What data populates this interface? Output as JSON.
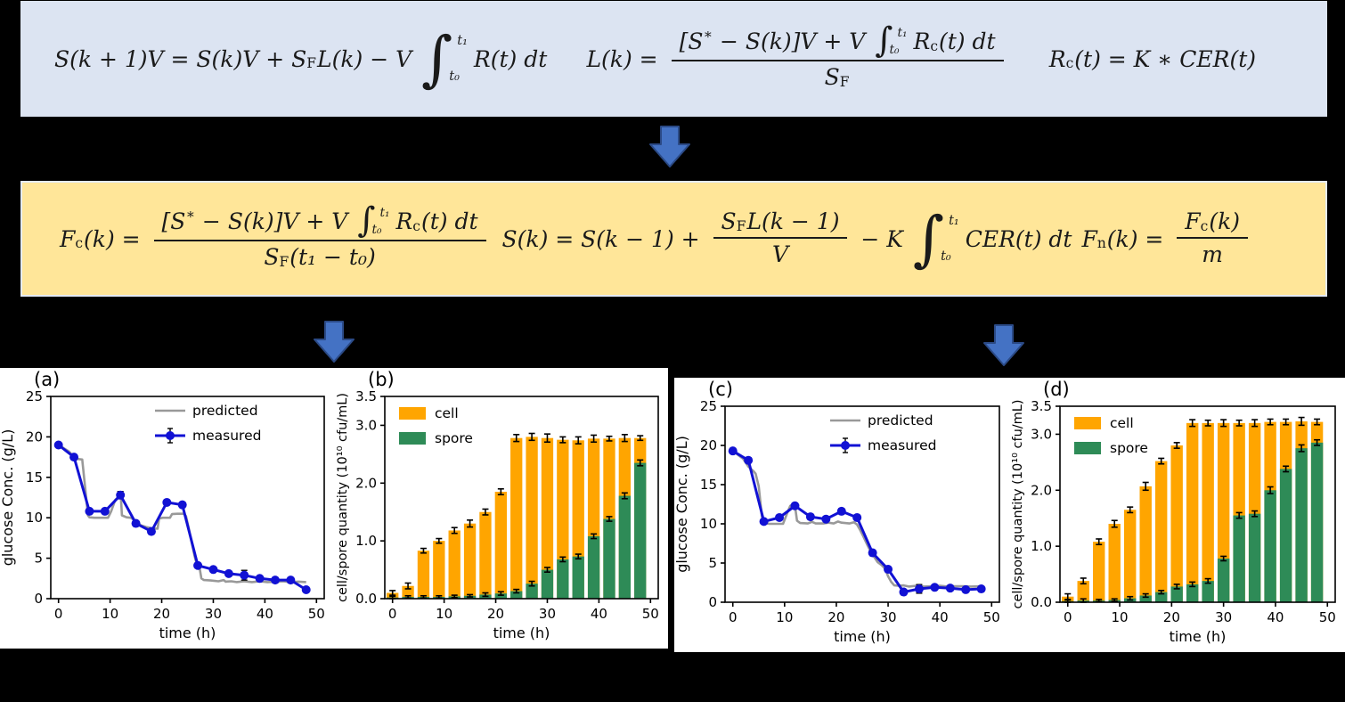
{
  "colors": {
    "background": "#000000",
    "model_box_bg": "#dce4f2",
    "control_box_bg": "#ffe699",
    "control_box_border": "#e4ebf5",
    "arrow_fill": "#4472c4",
    "arrow_stroke": "#2b4a86",
    "panel_bg": "#ffffff",
    "equation_text": "#1a1a1a",
    "predicted_line": "#999999",
    "measured_line": "#1111d4",
    "cell_bar": "#ffa500",
    "spore_bar": "#2e8b57",
    "axis": "#000000"
  },
  "formula_boxes": [
    {
      "name": "substrate-mass-balance-model",
      "equations": [
        {
          "segs": [
            {
              "t": "v",
              "s": "S(k + 1)V = S(k)V + S"
            },
            {
              "t": "sub",
              "s": "F"
            },
            {
              "t": "v",
              "s": "L(k) − V "
            },
            {
              "t": "int",
              "big": true,
              "hi": "t₁",
              "lo": "t₀"
            },
            {
              "t": "v",
              "s": " R(t) dt"
            }
          ]
        },
        {
          "segs": [
            {
              "t": "v",
              "s": "L(k) = "
            },
            {
              "t": "frac",
              "num": [
                {
                  "t": "v",
                  "s": "[S"
                },
                {
                  "t": "sup",
                  "s": "∗"
                },
                {
                  "t": "v",
                  "s": " − S(k)]V + V "
                },
                {
                  "t": "int",
                  "hi": "t₁",
                  "lo": "t₀"
                },
                {
                  "t": "v",
                  "s": " R"
                },
                {
                  "t": "sub",
                  "s": "c"
                },
                {
                  "t": "v",
                  "s": "(t) dt"
                }
              ],
              "den": [
                {
                  "t": "v",
                  "s": "S"
                },
                {
                  "t": "sub",
                  "s": "F"
                }
              ]
            }
          ]
        },
        {
          "segs": [
            {
              "t": "v",
              "s": "R"
            },
            {
              "t": "sub",
              "s": "c"
            },
            {
              "t": "v",
              "s": "(t) = K ∗ CER(t)"
            }
          ]
        }
      ]
    },
    {
      "name": "feed-rate-control-law",
      "equations": [
        {
          "segs": [
            {
              "t": "v",
              "s": "F"
            },
            {
              "t": "sub",
              "s": "c"
            },
            {
              "t": "v",
              "s": "(k) = "
            },
            {
              "t": "frac",
              "num": [
                {
                  "t": "v",
                  "s": "[S"
                },
                {
                  "t": "sup",
                  "s": "∗"
                },
                {
                  "t": "v",
                  "s": " − S(k)]V + V "
                },
                {
                  "t": "int",
                  "hi": "t₁",
                  "lo": "t₀"
                },
                {
                  "t": "v",
                  "s": " R"
                },
                {
                  "t": "sub",
                  "s": "c"
                },
                {
                  "t": "v",
                  "s": "(t) dt"
                }
              ],
              "den": [
                {
                  "t": "v",
                  "s": "S"
                },
                {
                  "t": "sub",
                  "s": "F"
                },
                {
                  "t": "v",
                  "s": "(t₁ − t₀)"
                }
              ]
            }
          ]
        },
        {
          "segs": [
            {
              "t": "v",
              "s": "S(k) = S(k − 1) + "
            },
            {
              "t": "frac",
              "num": [
                {
                  "t": "v",
                  "s": "S"
                },
                {
                  "t": "sub",
                  "s": "F"
                },
                {
                  "t": "v",
                  "s": "L(k − 1)"
                }
              ],
              "den": [
                {
                  "t": "v",
                  "s": "V"
                }
              ]
            },
            {
              "t": "v",
              "s": " − K "
            },
            {
              "t": "int",
              "big": true,
              "hi": "t₁",
              "lo": "t₀"
            },
            {
              "t": "v",
              "s": " CER(t) dt"
            }
          ]
        },
        {
          "segs": [
            {
              "t": "v",
              "s": "F"
            },
            {
              "t": "sub",
              "s": "n"
            },
            {
              "t": "v",
              "s": "(k) = "
            },
            {
              "t": "frac",
              "num": [
                {
                  "t": "v",
                  "s": "F"
                },
                {
                  "t": "sub",
                  "s": "c"
                },
                {
                  "t": "v",
                  "s": "(k)"
                }
              ],
              "den": [
                {
                  "t": "v",
                  "s": "m"
                }
              ]
            }
          ]
        }
      ]
    }
  ],
  "chart_data": [
    {
      "id": "a",
      "type": "line",
      "panel_label": "(a)",
      "xlabel": "time (h)",
      "ylabel": "glucose Conc.  (g/L)",
      "xlim": [
        -1.5,
        51.5
      ],
      "ylim": [
        0,
        25
      ],
      "xticks": [
        0,
        10,
        20,
        30,
        40,
        50
      ],
      "yticks": [
        0,
        5,
        10,
        15,
        20,
        25
      ],
      "legend": [
        {
          "label": "predicted",
          "kind": "line"
        },
        {
          "label": "measured",
          "kind": "errline"
        }
      ],
      "legend_pos": "top-right",
      "x": [
        0,
        3,
        6,
        9,
        12,
        15,
        18,
        21,
        24,
        27,
        30,
        33,
        36,
        39,
        42,
        45,
        48
      ],
      "measured": [
        19.0,
        17.5,
        10.8,
        10.8,
        12.8,
        9.3,
        8.3,
        11.9,
        11.6,
        4.1,
        3.6,
        3.1,
        2.9,
        2.5,
        2.3,
        2.3,
        1.1
      ],
      "measured_err": [
        0.15,
        0.2,
        0.2,
        0.15,
        0.45,
        0.25,
        0.2,
        0.3,
        0.25,
        0.3,
        0.15,
        0.2,
        0.6,
        0.15,
        0.15,
        0.2,
        0.15
      ],
      "predicted": [
        [
          0,
          19
        ],
        [
          2,
          18.2
        ],
        [
          3,
          17.5
        ],
        [
          3.3,
          17.3
        ],
        [
          4.6,
          17.2
        ],
        [
          5.2,
          13.5
        ],
        [
          5.7,
          10.3
        ],
        [
          6,
          10.05
        ],
        [
          7,
          10
        ],
        [
          9.6,
          10
        ],
        [
          10.2,
          10.8
        ],
        [
          11,
          12.2
        ],
        [
          11.6,
          12.55
        ],
        [
          12.1,
          12.4
        ],
        [
          12.3,
          10.3
        ],
        [
          13.2,
          10.05
        ],
        [
          14,
          10
        ],
        [
          14.6,
          9.75
        ],
        [
          15.2,
          9.4
        ],
        [
          16,
          9.05
        ],
        [
          17,
          8.85
        ],
        [
          18.2,
          8.7
        ],
        [
          19.2,
          8.65
        ],
        [
          19.5,
          9.9
        ],
        [
          20.2,
          10
        ],
        [
          21.6,
          10
        ],
        [
          22,
          10.45
        ],
        [
          23,
          10.5
        ],
        [
          24.3,
          10.5
        ],
        [
          24.7,
          10.2
        ],
        [
          25.2,
          8.8
        ],
        [
          25.8,
          7.0
        ],
        [
          26.4,
          5.2
        ],
        [
          27,
          3.75
        ],
        [
          27.4,
          3.6
        ],
        [
          27.7,
          2.5
        ],
        [
          28.2,
          2.3
        ],
        [
          29.5,
          2.25
        ],
        [
          31,
          2.15
        ],
        [
          32,
          2.3
        ],
        [
          32.4,
          2.1
        ],
        [
          33.5,
          2.15
        ],
        [
          34.5,
          2.05
        ],
        [
          36,
          2.15
        ],
        [
          37.5,
          2.05
        ],
        [
          39,
          2.15
        ],
        [
          40.5,
          2.05
        ],
        [
          42,
          2.1
        ],
        [
          43.5,
          2.15
        ],
        [
          45,
          2.05
        ],
        [
          46.5,
          2.1
        ],
        [
          48,
          2.05
        ]
      ]
    },
    {
      "id": "b",
      "type": "bar",
      "panel_label": "(b)",
      "xlabel": "time (h)",
      "ylabel": "cell/spore quantity (10¹⁰ cfu/mL)",
      "xlim": [
        -1.5,
        51.5
      ],
      "ylim": [
        0,
        3.5
      ],
      "xticks": [
        0,
        10,
        20,
        30,
        40,
        50
      ],
      "yticks": [
        0,
        1,
        2,
        3,
        3.5
      ],
      "legend": [
        {
          "label": "cell",
          "kind": "patch-cell"
        },
        {
          "label": "spore",
          "kind": "patch-spore"
        }
      ],
      "legend_pos": "top-left",
      "bar_width": 2.3,
      "x": [
        0,
        3,
        6,
        9,
        12,
        15,
        18,
        21,
        24,
        27,
        30,
        33,
        36,
        39,
        42,
        45,
        48
      ],
      "cell": [
        0.1,
        0.22,
        0.83,
        1.0,
        1.18,
        1.3,
        1.5,
        1.85,
        2.78,
        2.8,
        2.78,
        2.75,
        2.74,
        2.77,
        2.77,
        2.78,
        2.78
      ],
      "cell_err": [
        0.04,
        0.05,
        0.04,
        0.04,
        0.05,
        0.06,
        0.05,
        0.05,
        0.06,
        0.06,
        0.07,
        0.05,
        0.06,
        0.06,
        0.04,
        0.06,
        0.04
      ],
      "spore": [
        0.02,
        0.03,
        0.03,
        0.03,
        0.04,
        0.05,
        0.07,
        0.09,
        0.13,
        0.26,
        0.5,
        0.68,
        0.73,
        1.08,
        1.38,
        1.78,
        2.35
      ],
      "spore_err": [
        0.02,
        0.02,
        0.02,
        0.02,
        0.02,
        0.02,
        0.03,
        0.03,
        0.03,
        0.04,
        0.04,
        0.04,
        0.04,
        0.04,
        0.04,
        0.05,
        0.05
      ]
    },
    {
      "id": "c",
      "type": "line",
      "panel_label": "(c)",
      "xlabel": "time (h)",
      "ylabel": "glucose Conc.  (g/L)",
      "xlim": [
        -1.5,
        51.5
      ],
      "ylim": [
        0,
        25
      ],
      "xticks": [
        0,
        10,
        20,
        30,
        40,
        50
      ],
      "yticks": [
        0,
        5,
        10,
        15,
        20,
        25
      ],
      "legend": [
        {
          "label": "predicted",
          "kind": "line"
        },
        {
          "label": "measured",
          "kind": "errline"
        }
      ],
      "legend_pos": "top-right",
      "x": [
        0,
        3,
        6,
        9,
        12,
        15,
        18,
        21,
        24,
        27,
        30,
        33,
        36,
        39,
        42,
        45,
        48
      ],
      "measured": [
        19.3,
        18.1,
        10.3,
        10.8,
        12.3,
        10.9,
        10.6,
        11.6,
        10.8,
        6.3,
        4.2,
        1.3,
        1.7,
        1.9,
        1.8,
        1.6,
        1.7
      ],
      "measured_err": [
        0.2,
        0.15,
        0.2,
        0.25,
        0.35,
        0.3,
        0.2,
        0.35,
        0.25,
        0.35,
        0.2,
        0.25,
        0.55,
        0.15,
        0.2,
        0.15,
        0.15
      ],
      "predicted": [
        [
          0,
          19.3
        ],
        [
          2,
          18.3
        ],
        [
          3,
          17.3
        ],
        [
          4,
          16.7
        ],
        [
          4.4,
          16.4
        ],
        [
          5,
          14.8
        ],
        [
          5.6,
          11
        ],
        [
          6,
          10.15
        ],
        [
          7,
          10
        ],
        [
          9.7,
          10
        ],
        [
          10.4,
          11.2
        ],
        [
          11.1,
          12.3
        ],
        [
          11.6,
          12.45
        ],
        [
          12,
          12.3
        ],
        [
          12.4,
          10.4
        ],
        [
          13,
          10.1
        ],
        [
          14.5,
          10.05
        ],
        [
          15.3,
          10.25
        ],
        [
          16,
          10.05
        ],
        [
          17.5,
          10.05
        ],
        [
          18.5,
          10.15
        ],
        [
          19.5,
          10.05
        ],
        [
          20.3,
          10.3
        ],
        [
          21,
          10.15
        ],
        [
          22.5,
          10.05
        ],
        [
          23.4,
          10.2
        ],
        [
          24,
          9.9
        ],
        [
          24.6,
          9.2
        ],
        [
          25.2,
          8.4
        ],
        [
          26,
          7.3
        ],
        [
          26.6,
          6.5
        ],
        [
          27.2,
          5.9
        ],
        [
          28,
          5.1
        ],
        [
          28.8,
          4.7
        ],
        [
          29.4,
          4.3
        ],
        [
          30,
          3.3
        ],
        [
          30.6,
          2.6
        ],
        [
          31.2,
          2.15
        ],
        [
          32,
          2.1
        ],
        [
          33,
          2.15
        ],
        [
          34,
          2.0
        ],
        [
          35.5,
          2.1
        ],
        [
          37,
          2.0
        ],
        [
          38.5,
          2.05
        ],
        [
          40,
          2.1
        ],
        [
          41.5,
          2.0
        ],
        [
          43,
          2.05
        ],
        [
          44.5,
          2.05
        ],
        [
          46,
          2.0
        ],
        [
          48,
          2.05
        ]
      ]
    },
    {
      "id": "d",
      "type": "bar",
      "panel_label": "(d)",
      "xlabel": "time (h)",
      "ylabel": "cell/spore quantity (10¹⁰ cfu/mL)",
      "xlim": [
        -1.5,
        51.5
      ],
      "ylim": [
        0,
        3.5
      ],
      "xticks": [
        0,
        10,
        20,
        30,
        40,
        50
      ],
      "yticks": [
        0,
        1,
        2,
        3,
        3.5
      ],
      "legend": [
        {
          "label": "cell",
          "kind": "patch-cell"
        },
        {
          "label": "spore",
          "kind": "patch-spore"
        }
      ],
      "legend_pos": "top-left",
      "bar_width": 2.3,
      "x": [
        0,
        3,
        6,
        9,
        12,
        15,
        18,
        21,
        24,
        27,
        30,
        33,
        36,
        39,
        42,
        45,
        48
      ],
      "cell": [
        0.1,
        0.38,
        1.08,
        1.4,
        1.65,
        2.07,
        2.52,
        2.8,
        3.2,
        3.2,
        3.2,
        3.2,
        3.2,
        3.22,
        3.22,
        3.23,
        3.22
      ],
      "cell_err": [
        0.05,
        0.05,
        0.05,
        0.06,
        0.05,
        0.07,
        0.05,
        0.05,
        0.06,
        0.05,
        0.06,
        0.05,
        0.06,
        0.05,
        0.05,
        0.07,
        0.05
      ],
      "spore": [
        0.02,
        0.03,
        0.03,
        0.04,
        0.07,
        0.12,
        0.18,
        0.28,
        0.32,
        0.38,
        0.78,
        1.55,
        1.58,
        2.0,
        2.38,
        2.75,
        2.85
      ],
      "spore_err": [
        0.02,
        0.03,
        0.02,
        0.02,
        0.03,
        0.03,
        0.03,
        0.04,
        0.04,
        0.04,
        0.04,
        0.05,
        0.05,
        0.06,
        0.05,
        0.06,
        0.05
      ]
    }
  ]
}
